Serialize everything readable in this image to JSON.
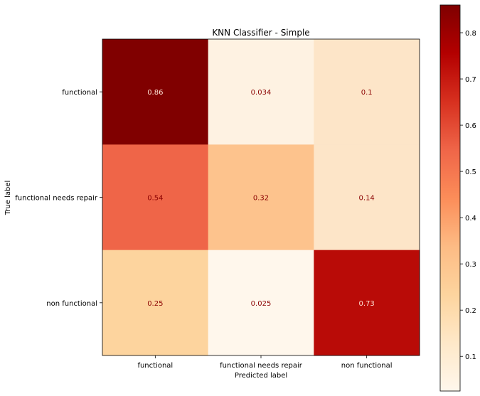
{
  "chart_data": {
    "type": "heatmap",
    "title": "KNN Classifier - Simple",
    "xlabel": "Predicted label",
    "ylabel": "True label",
    "x_categories": [
      "functional",
      "functional needs repair",
      "non functional"
    ],
    "y_categories": [
      "functional",
      "functional needs repair",
      "non functional"
    ],
    "values": [
      [
        0.86,
        0.034,
        0.1
      ],
      [
        0.54,
        0.32,
        0.14
      ],
      [
        0.25,
        0.025,
        0.73
      ]
    ],
    "value_labels": [
      [
        "0.86",
        "0.034",
        "0.1"
      ],
      [
        "0.54",
        "0.32",
        "0.14"
      ],
      [
        "0.25",
        "0.025",
        "0.73"
      ]
    ],
    "colormap": "OrRd",
    "cell_colors": [
      [
        "#800000",
        "#fef2e2",
        "#fde5c8"
      ],
      [
        "#ef6548",
        "#fdc38d",
        "#fde5c8"
      ],
      [
        "#fdd49e",
        "#fff7ec",
        "#b90b07"
      ]
    ],
    "value_label_color": "#8b0000",
    "colorbar": {
      "range": [
        0.025,
        0.86
      ],
      "ticks": [
        "0.1",
        "0.2",
        "0.3",
        "0.4",
        "0.5",
        "0.6",
        "0.7",
        "0.8"
      ],
      "tick_values": [
        0.1,
        0.2,
        0.3,
        0.4,
        0.5,
        0.6,
        0.7,
        0.8
      ]
    },
    "grid": false
  }
}
